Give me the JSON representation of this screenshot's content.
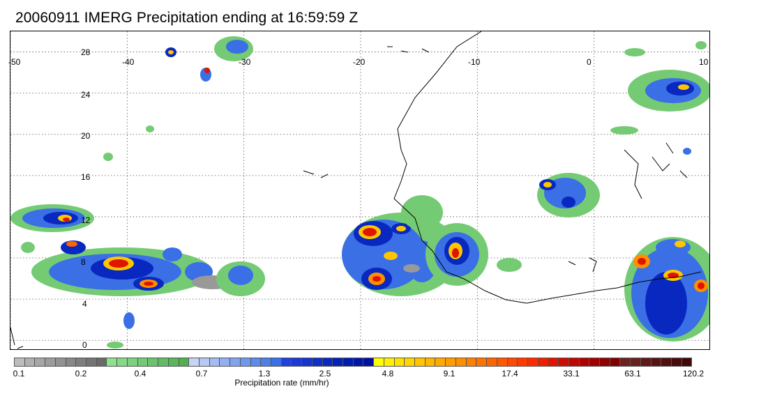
{
  "title": "20060911 IMERG Precipitation ending at 16:59:59 Z",
  "map": {
    "lon_range": [
      -50,
      10
    ],
    "lat_range": [
      -1,
      30
    ],
    "lon_ticks": [
      "-50",
      "-40",
      "-30",
      "-20",
      "-10",
      "0",
      "10"
    ],
    "lat_ticks": [
      "28",
      "24",
      "20",
      "16",
      "12",
      "8",
      "4",
      "0"
    ],
    "gridlines": "dotted",
    "coastline_color": "#000000"
  },
  "colorbar": {
    "title": "Precipitation rate (mm/hr)",
    "labels": [
      "0.1",
      "0.2",
      "0.4",
      "0.7",
      "1.3",
      "2.5",
      "4.8",
      "9.1",
      "17.4",
      "33.1",
      "63.1",
      "120.2"
    ],
    "colors": [
      "#bdbdbd",
      "#b0b0b0",
      "#a6a6a6",
      "#9c9c9c",
      "#929292",
      "#888888",
      "#7e7e7e",
      "#747474",
      "#6a6a6a",
      "#8fe08f",
      "#86d986",
      "#7dd27d",
      "#74cb74",
      "#6bc46b",
      "#62bd62",
      "#59b659",
      "#50af50",
      "#c8d4f5",
      "#b6c8f4",
      "#a4bcf2",
      "#92b0f0",
      "#80a4ee",
      "#6e98ec",
      "#5c8cea",
      "#4a80e8",
      "#3a6fe6",
      "#2040e0",
      "#1a3ad8",
      "#1434d0",
      "#0e2ec8",
      "#0828c0",
      "#0222b8",
      "#001cb0",
      "#0016a8",
      "#0010a0",
      "#ffff00",
      "#fff000",
      "#ffe200",
      "#ffd400",
      "#ffc600",
      "#ffb800",
      "#ffaa00",
      "#ff9c00",
      "#ff8e00",
      "#ff8000",
      "#ff7200",
      "#ff6400",
      "#ff5600",
      "#ff4800",
      "#ff3a00",
      "#ff2c00",
      "#f01e00",
      "#e01400",
      "#d00c00",
      "#c00600",
      "#b00000",
      "#a00000",
      "#900000",
      "#800000",
      "#702020",
      "#682020",
      "#601818",
      "#581414",
      "#501010",
      "#480c0c",
      "#400808"
    ]
  }
}
